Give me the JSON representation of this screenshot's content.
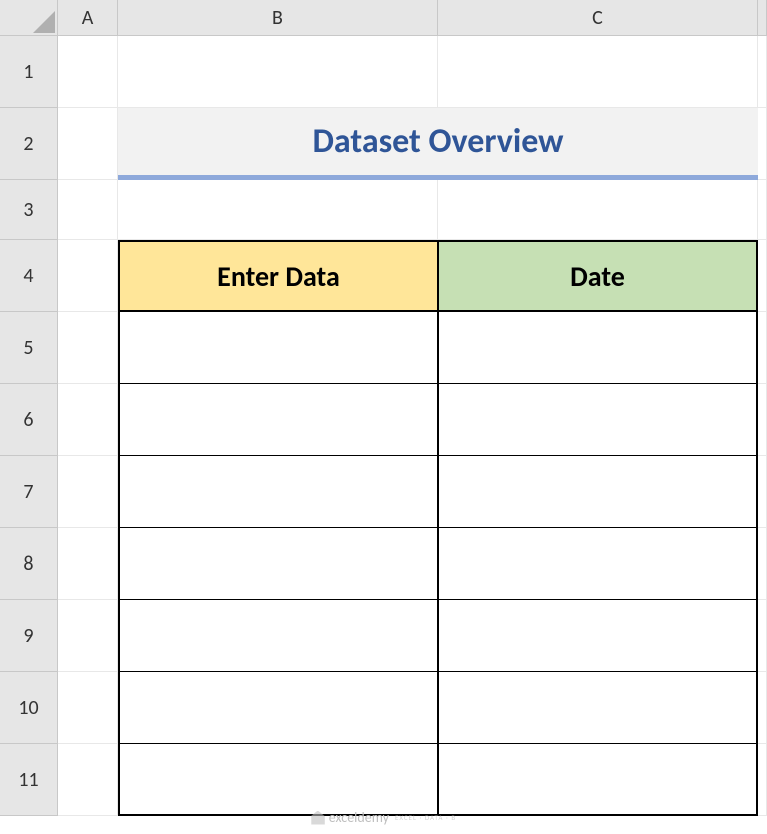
{
  "columns": [
    "A",
    "B",
    "C"
  ],
  "rows": [
    "1",
    "2",
    "3",
    "4",
    "5",
    "6",
    "7",
    "8",
    "9",
    "10",
    "11"
  ],
  "title": {
    "text": "Dataset Overview",
    "background": "#f2f2f2",
    "underline_color": "#8ea9db",
    "text_color": "#2f5597",
    "fontsize": 34
  },
  "table": {
    "headers": [
      {
        "label": "Enter Data",
        "background": "#ffe699"
      },
      {
        "label": "Date",
        "background": "#c6e0b4"
      }
    ],
    "header_fontsize": 28,
    "border_color": "#000000",
    "row_count": 7,
    "rows": [
      [
        "",
        ""
      ],
      [
        "",
        ""
      ],
      [
        "",
        ""
      ],
      [
        "",
        ""
      ],
      [
        "",
        ""
      ],
      [
        "",
        ""
      ],
      [
        "",
        ""
      ]
    ]
  },
  "watermark": {
    "text": "exceldemy",
    "subtext": "EXCEL · DATA · B"
  },
  "grid_colors": {
    "header_bg": "#e6e6e6",
    "header_border": "#c8c8c8",
    "cell_border": "#e8e8e8",
    "cell_bg": "#ffffff"
  }
}
